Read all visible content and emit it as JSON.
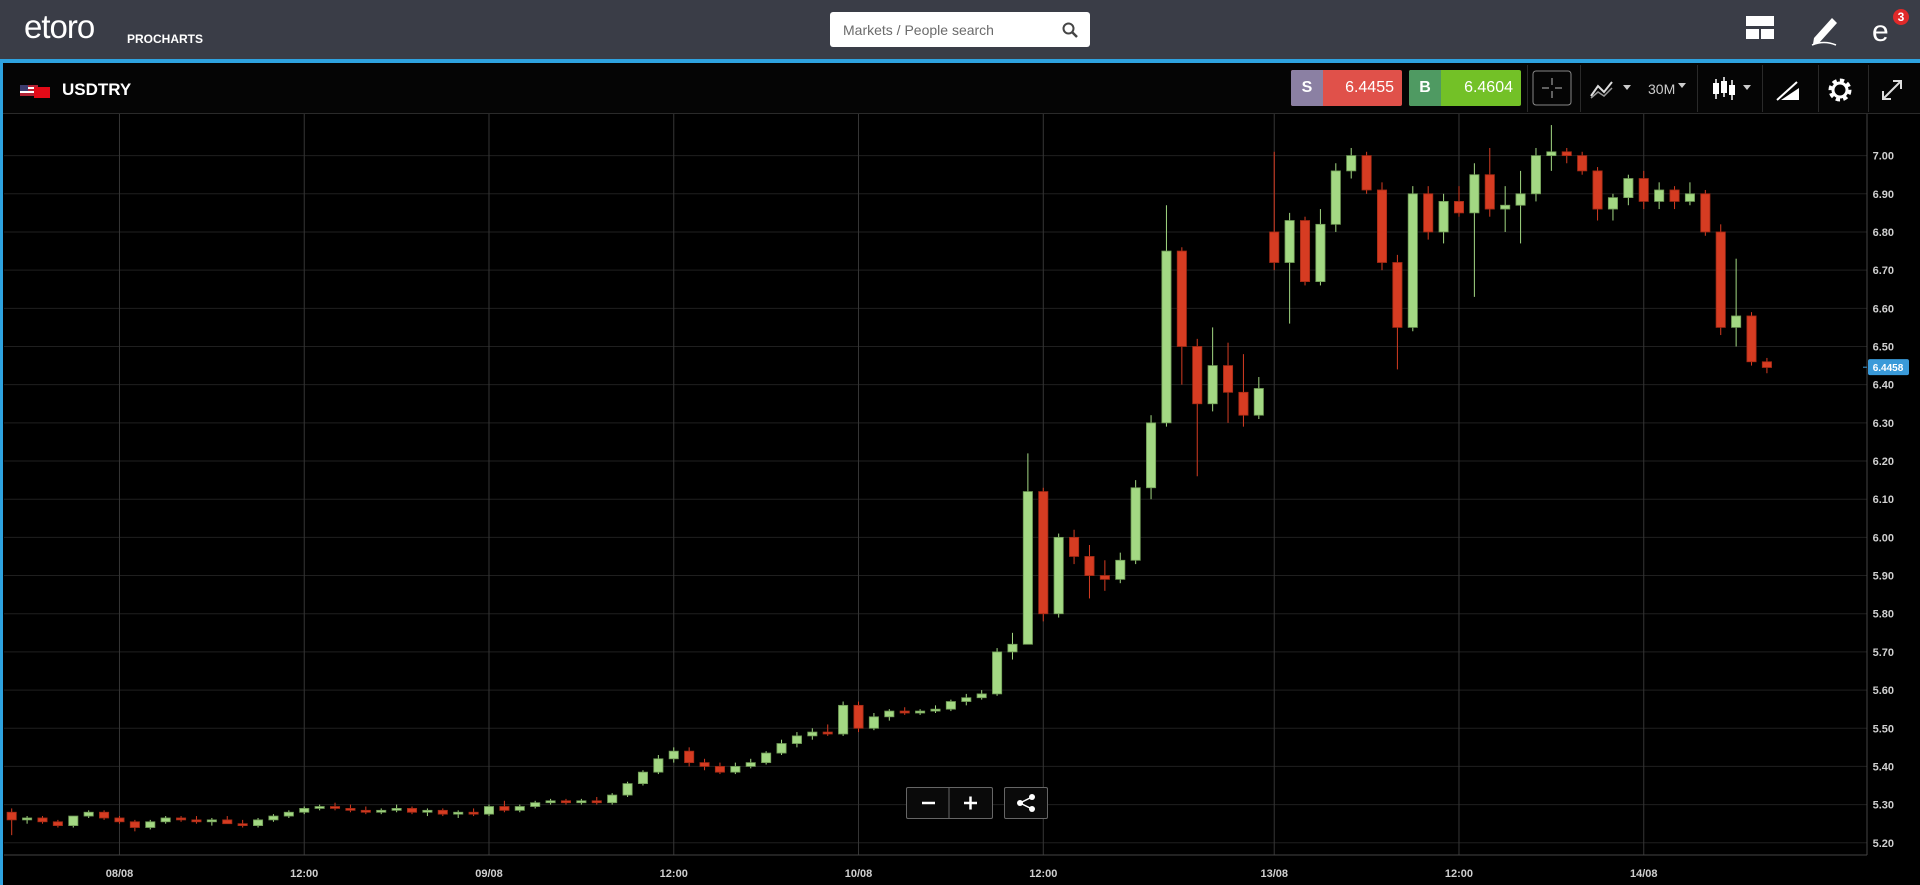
{
  "header": {
    "logo": "etoro",
    "product": "PROCHARTS",
    "search_placeholder": "Markets / People search",
    "notifications": 3
  },
  "instrument": {
    "symbol": "USDTRY",
    "sell_label": "S",
    "sell": 6.4455,
    "buy_label": "B",
    "buy": 6.4604,
    "timeframe": "30M"
  },
  "chart_data": {
    "type": "candlestick",
    "up_color": "#a3d883",
    "down_color": "#d63c22",
    "grid": true,
    "last_price": 6.4458,
    "xlim": [
      -0.5,
      120.5
    ],
    "xticks": [
      {
        "value": 7,
        "label": "08/08"
      },
      {
        "value": 19,
        "label": "12:00"
      },
      {
        "value": 31,
        "label": "09/08"
      },
      {
        "value": 43,
        "label": "12:00"
      },
      {
        "value": 55,
        "label": "10/08"
      },
      {
        "value": 67,
        "label": "12:00"
      },
      {
        "value": 82,
        "label": "13/08"
      },
      {
        "value": 94,
        "label": "12:00"
      },
      {
        "value": 106,
        "label": "14/08"
      }
    ],
    "ylim": [
      5.168,
      7.109
    ],
    "yticks": [
      {
        "value": 5.2,
        "label": "5.20"
      },
      {
        "value": 5.3,
        "label": "5.30"
      },
      {
        "value": 5.4,
        "label": "5.40"
      },
      {
        "value": 5.5,
        "label": "5.50"
      },
      {
        "value": 5.6,
        "label": "5.60"
      },
      {
        "value": 5.7,
        "label": "5.70"
      },
      {
        "value": 5.8,
        "label": "5.80"
      },
      {
        "value": 5.9,
        "label": "5.90"
      },
      {
        "value": 6.0,
        "label": "6.00"
      },
      {
        "value": 6.1,
        "label": "6.10"
      },
      {
        "value": 6.2,
        "label": "6.20"
      },
      {
        "value": 6.3,
        "label": "6.30"
      },
      {
        "value": 6.4,
        "label": "6.40"
      },
      {
        "value": 6.5,
        "label": "6.50"
      },
      {
        "value": 6.6,
        "label": "6.60"
      },
      {
        "value": 6.7,
        "label": "6.70"
      },
      {
        "value": 6.8,
        "label": "6.80"
      },
      {
        "value": 6.9,
        "label": "6.90"
      },
      {
        "value": 7.0,
        "label": "7.00"
      }
    ],
    "candles": [
      [
        5.28,
        5.29,
        5.22,
        5.26
      ],
      [
        5.26,
        5.27,
        5.25,
        5.265
      ],
      [
        5.265,
        5.27,
        5.25,
        5.255
      ],
      [
        5.255,
        5.26,
        5.24,
        5.245
      ],
      [
        5.245,
        5.27,
        5.24,
        5.27
      ],
      [
        5.27,
        5.285,
        5.265,
        5.28
      ],
      [
        5.28,
        5.285,
        5.26,
        5.265
      ],
      [
        5.265,
        5.27,
        5.25,
        5.255
      ],
      [
        5.255,
        5.26,
        5.23,
        5.24
      ],
      [
        5.24,
        5.26,
        5.235,
        5.255
      ],
      [
        5.255,
        5.27,
        5.25,
        5.265
      ],
      [
        5.265,
        5.27,
        5.255,
        5.26
      ],
      [
        5.26,
        5.27,
        5.25,
        5.255
      ],
      [
        5.255,
        5.265,
        5.245,
        5.26
      ],
      [
        5.26,
        5.27,
        5.25,
        5.25
      ],
      [
        5.25,
        5.26,
        5.24,
        5.245
      ],
      [
        5.245,
        5.265,
        5.24,
        5.26
      ],
      [
        5.26,
        5.275,
        5.255,
        5.27
      ],
      [
        5.27,
        5.285,
        5.265,
        5.28
      ],
      [
        5.28,
        5.295,
        5.275,
        5.29
      ],
      [
        5.29,
        5.3,
        5.285,
        5.295
      ],
      [
        5.295,
        5.305,
        5.285,
        5.29
      ],
      [
        5.29,
        5.3,
        5.28,
        5.285
      ],
      [
        5.285,
        5.295,
        5.275,
        5.28
      ],
      [
        5.28,
        5.29,
        5.275,
        5.285
      ],
      [
        5.285,
        5.3,
        5.28,
        5.29
      ],
      [
        5.29,
        5.295,
        5.275,
        5.28
      ],
      [
        5.28,
        5.29,
        5.27,
        5.285
      ],
      [
        5.285,
        5.29,
        5.27,
        5.275
      ],
      [
        5.275,
        5.285,
        5.265,
        5.28
      ],
      [
        5.28,
        5.29,
        5.27,
        5.275
      ],
      [
        5.275,
        5.3,
        5.27,
        5.295
      ],
      [
        5.295,
        5.31,
        5.28,
        5.285
      ],
      [
        5.285,
        5.3,
        5.28,
        5.295
      ],
      [
        5.295,
        5.31,
        5.29,
        5.305
      ],
      [
        5.305,
        5.315,
        5.3,
        5.31
      ],
      [
        5.31,
        5.315,
        5.3,
        5.305
      ],
      [
        5.305,
        5.315,
        5.3,
        5.31
      ],
      [
        5.31,
        5.32,
        5.3,
        5.305
      ],
      [
        5.305,
        5.33,
        5.3,
        5.325
      ],
      [
        5.325,
        5.36,
        5.32,
        5.355
      ],
      [
        5.355,
        5.39,
        5.35,
        5.385
      ],
      [
        5.385,
        5.43,
        5.38,
        5.42
      ],
      [
        5.42,
        5.45,
        5.41,
        5.44
      ],
      [
        5.44,
        5.45,
        5.4,
        5.41
      ],
      [
        5.41,
        5.42,
        5.39,
        5.4
      ],
      [
        5.4,
        5.41,
        5.38,
        5.385
      ],
      [
        5.385,
        5.41,
        5.38,
        5.4
      ],
      [
        5.4,
        5.42,
        5.395,
        5.41
      ],
      [
        5.41,
        5.44,
        5.405,
        5.435
      ],
      [
        5.435,
        5.47,
        5.43,
        5.46
      ],
      [
        5.46,
        5.49,
        5.45,
        5.48
      ],
      [
        5.48,
        5.5,
        5.47,
        5.49
      ],
      [
        5.49,
        5.51,
        5.48,
        5.485
      ],
      [
        5.485,
        5.57,
        5.48,
        5.56
      ],
      [
        5.56,
        5.57,
        5.49,
        5.5
      ],
      [
        5.5,
        5.54,
        5.495,
        5.53
      ],
      [
        5.53,
        5.55,
        5.52,
        5.545
      ],
      [
        5.545,
        5.555,
        5.535,
        5.54
      ],
      [
        5.54,
        5.55,
        5.535,
        5.545
      ],
      [
        5.545,
        5.56,
        5.54,
        5.55
      ],
      [
        5.55,
        5.575,
        5.545,
        5.57
      ],
      [
        5.57,
        5.59,
        5.56,
        5.58
      ],
      [
        5.58,
        5.6,
        5.575,
        5.59
      ],
      [
        5.59,
        5.71,
        5.585,
        5.7
      ],
      [
        5.7,
        5.75,
        5.68,
        5.72
      ],
      [
        5.72,
        6.22,
        5.72,
        6.12
      ],
      [
        6.12,
        6.13,
        5.78,
        5.8
      ],
      [
        5.8,
        6.01,
        5.79,
        6.0
      ],
      [
        6.0,
        6.02,
        5.93,
        5.95
      ],
      [
        5.95,
        5.98,
        5.84,
        5.9
      ],
      [
        5.9,
        5.94,
        5.86,
        5.89
      ],
      [
        5.89,
        5.96,
        5.88,
        5.94
      ],
      [
        5.94,
        6.15,
        5.93,
        6.13
      ],
      [
        6.13,
        6.32,
        6.1,
        6.3
      ],
      [
        6.3,
        6.87,
        6.29,
        6.75
      ],
      [
        6.75,
        6.76,
        6.4,
        6.5
      ],
      [
        6.5,
        6.52,
        6.16,
        6.35
      ],
      [
        6.35,
        6.55,
        6.33,
        6.45
      ],
      [
        6.45,
        6.51,
        6.3,
        6.38
      ],
      [
        6.38,
        6.48,
        6.29,
        6.32
      ],
      [
        6.32,
        6.42,
        6.31,
        6.39
      ],
      [
        6.8,
        7.01,
        6.7,
        6.72
      ],
      [
        6.72,
        6.85,
        6.56,
        6.83
      ],
      [
        6.83,
        6.84,
        6.66,
        6.67
      ],
      [
        6.67,
        6.86,
        6.66,
        6.82
      ],
      [
        6.82,
        6.98,
        6.8,
        6.96
      ],
      [
        6.96,
        7.02,
        6.94,
        7.0
      ],
      [
        7.0,
        7.01,
        6.9,
        6.91
      ],
      [
        6.91,
        6.93,
        6.7,
        6.72
      ],
      [
        6.72,
        6.74,
        6.44,
        6.55
      ],
      [
        6.55,
        6.92,
        6.54,
        6.9
      ],
      [
        6.9,
        6.92,
        6.78,
        6.8
      ],
      [
        6.8,
        6.9,
        6.77,
        6.88
      ],
      [
        6.88,
        6.92,
        6.84,
        6.85
      ],
      [
        6.85,
        6.98,
        6.63,
        6.95
      ],
      [
        6.95,
        7.02,
        6.84,
        6.86
      ],
      [
        6.86,
        6.92,
        6.8,
        6.87
      ],
      [
        6.87,
        6.96,
        6.77,
        6.9
      ],
      [
        6.9,
        7.02,
        6.88,
        7.0
      ],
      [
        7.0,
        7.08,
        6.96,
        7.01
      ],
      [
        7.01,
        7.02,
        6.98,
        7.0
      ],
      [
        7.0,
        7.01,
        6.95,
        6.96
      ],
      [
        6.96,
        6.97,
        6.83,
        6.86
      ],
      [
        6.86,
        6.9,
        6.83,
        6.89
      ],
      [
        6.89,
        6.95,
        6.87,
        6.94
      ],
      [
        6.94,
        6.96,
        6.86,
        6.88
      ],
      [
        6.88,
        6.93,
        6.86,
        6.91
      ],
      [
        6.91,
        6.92,
        6.86,
        6.88
      ],
      [
        6.88,
        6.93,
        6.87,
        6.9
      ],
      [
        6.9,
        6.91,
        6.79,
        6.8
      ],
      [
        6.8,
        6.82,
        6.53,
        6.55
      ],
      [
        6.55,
        6.73,
        6.5,
        6.58
      ],
      [
        6.58,
        6.59,
        6.45,
        6.46
      ],
      [
        6.46,
        6.47,
        6.43,
        6.445
      ]
    ]
  }
}
